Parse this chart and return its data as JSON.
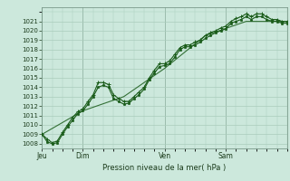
{
  "title": "Pression niveau de la mer( hPa )",
  "bg_color": "#cce8dc",
  "grid_color": "#aaccbc",
  "line_color": "#1a5c1a",
  "marker_color": "#1a5c1a",
  "ylim": [
    1007.5,
    1022.5
  ],
  "yticks": [
    1008,
    1009,
    1010,
    1011,
    1012,
    1013,
    1014,
    1015,
    1016,
    1017,
    1018,
    1019,
    1020,
    1021
  ],
  "xtick_labels": [
    "Jeu",
    "Dim",
    "Ven",
    "Sam"
  ],
  "xtick_positions": [
    0,
    48,
    144,
    216
  ],
  "vline_positions": [
    0,
    48,
    144,
    216
  ],
  "xlim": [
    0,
    288
  ],
  "series1_x": [
    0,
    6,
    12,
    18,
    24,
    30,
    36,
    42,
    48,
    54,
    60,
    66,
    72,
    78,
    84,
    90,
    96,
    102,
    108,
    114,
    120,
    126,
    132,
    138,
    144,
    150,
    156,
    162,
    168,
    174,
    180,
    186,
    192,
    198,
    204,
    210,
    216,
    222,
    228,
    234,
    240,
    246,
    252,
    258,
    264,
    270,
    276,
    282,
    288
  ],
  "series1_y": [
    1009.0,
    1008.5,
    1008.1,
    1008.3,
    1009.2,
    1010.0,
    1010.8,
    1011.4,
    1011.7,
    1012.5,
    1013.2,
    1014.5,
    1014.5,
    1014.3,
    1013.2,
    1012.8,
    1012.5,
    1012.5,
    1013.0,
    1013.5,
    1014.0,
    1015.0,
    1015.8,
    1016.5,
    1016.5,
    1016.8,
    1017.5,
    1018.2,
    1018.5,
    1018.5,
    1018.8,
    1019.0,
    1019.5,
    1019.8,
    1020.0,
    1020.3,
    1020.5,
    1021.0,
    1021.3,
    1021.5,
    1021.8,
    1021.5,
    1021.8,
    1021.8,
    1021.5,
    1021.2,
    1021.2,
    1021.0,
    1021.0
  ],
  "series2_x": [
    0,
    6,
    12,
    18,
    24,
    30,
    36,
    42,
    48,
    54,
    60,
    66,
    72,
    78,
    84,
    90,
    96,
    102,
    108,
    114,
    120,
    126,
    132,
    138,
    144,
    150,
    156,
    162,
    168,
    174,
    180,
    186,
    192,
    198,
    204,
    210,
    216,
    222,
    228,
    234,
    240,
    246,
    252,
    258,
    264,
    270,
    276,
    282,
    288
  ],
  "series2_y": [
    1009.0,
    1008.2,
    1008.0,
    1008.1,
    1009.0,
    1009.8,
    1010.5,
    1011.2,
    1011.5,
    1012.2,
    1013.0,
    1014.0,
    1014.2,
    1014.0,
    1012.8,
    1012.5,
    1012.2,
    1012.3,
    1012.8,
    1013.2,
    1013.8,
    1014.8,
    1015.5,
    1016.2,
    1016.3,
    1016.5,
    1017.2,
    1018.0,
    1018.3,
    1018.3,
    1018.5,
    1018.8,
    1019.2,
    1019.5,
    1019.8,
    1020.0,
    1020.2,
    1020.8,
    1021.0,
    1021.2,
    1021.5,
    1021.2,
    1021.5,
    1021.5,
    1021.2,
    1021.0,
    1021.0,
    1020.8,
    1020.8
  ],
  "series3_x": [
    0,
    48,
    96,
    144,
    192,
    240,
    288
  ],
  "series3_y": [
    1009.0,
    1011.5,
    1013.0,
    1016.0,
    1019.5,
    1021.0,
    1021.0
  ]
}
